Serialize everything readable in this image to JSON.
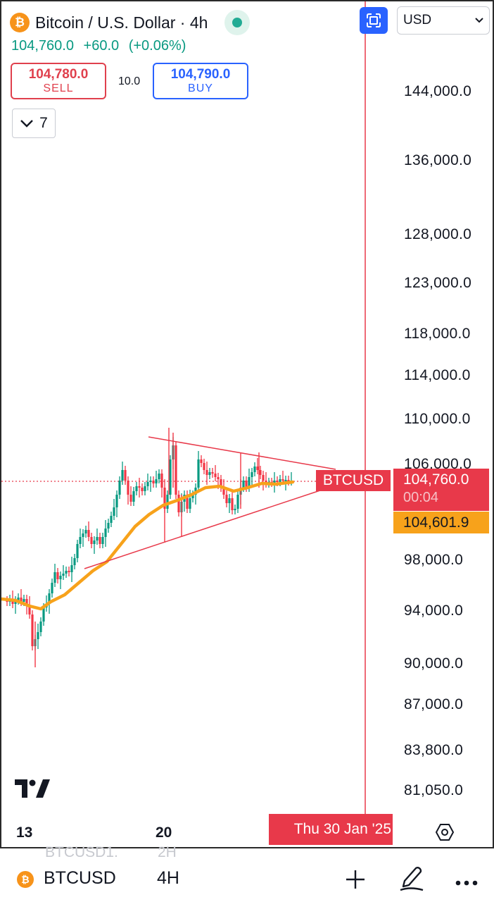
{
  "header": {
    "symbol_title": "Bitcoin / U.S. Dollar · 4h",
    "last_price": "104,760.0",
    "change": "+60.0",
    "change_pct": "(+0.06%)"
  },
  "trade": {
    "sell_price": "104,780.0",
    "sell_label": "SELL",
    "spread": "10.0",
    "buy_price": "104,790.0",
    "buy_label": "BUY"
  },
  "indicators_toggle": {
    "count": "7"
  },
  "currency_select": {
    "value": "USD"
  },
  "price_axis": [
    "144,000.0",
    "136,000.0",
    "128,000.0",
    "123,000.0",
    "118,000.0",
    "114,000.0",
    "110,000.0",
    "106,000.0",
    "98,000.0",
    "94,000.0",
    "90,000.0",
    "87,000.0",
    "83,800.0",
    "81,050.0"
  ],
  "time_axis": [
    "13",
    "20"
  ],
  "crosshair_date": "Thu 30 Jan '25",
  "symbol_tag": "BTCUSD",
  "price_tag": {
    "price": "104,760.0",
    "countdown": "00:04"
  },
  "ma_tag": "104,601.9",
  "bottom_bar": {
    "symbol": "BTCUSD",
    "interval": "4H",
    "ghost_symbol": "BTCUSD1.",
    "ghost_interval": "2H"
  },
  "colors": {
    "up": "#089981",
    "down": "#f23645",
    "ma": "#f7a21b",
    "accent": "#2962ff",
    "crosshair": "#e8394a"
  },
  "icons": [
    "bitcoin-icon",
    "fullscreen-icon",
    "chevron-down-icon",
    "tradingview-logo",
    "settings-icon",
    "plus-icon",
    "pen-icon",
    "more-icon"
  ]
}
